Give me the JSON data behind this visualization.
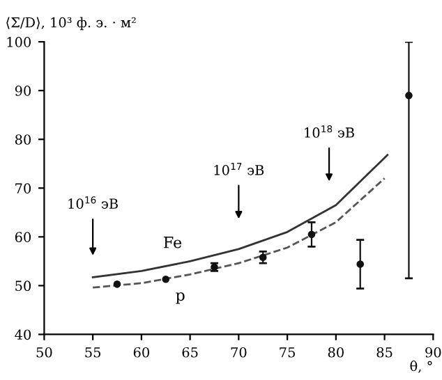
{
  "chart_data": {
    "type": "line",
    "ylabel": "⟨Σ/D⟩, 10³ ф. э. · м²",
    "xlabel": "θ, °",
    "xlim": [
      50,
      90
    ],
    "ylim": [
      40,
      100
    ],
    "xticks": [
      50,
      55,
      60,
      65,
      70,
      75,
      80,
      85,
      90
    ],
    "yticks": [
      40,
      50,
      60,
      70,
      80,
      90,
      100
    ],
    "grid": false,
    "legend": false,
    "series": [
      {
        "name": "Fe",
        "color": "#333333",
        "line_style": "solid",
        "x": [
          55,
          60,
          65,
          70,
          75,
          80,
          85.3
        ],
        "values": [
          51.7,
          53,
          55,
          57.5,
          61,
          66.5,
          76.8
        ]
      },
      {
        "name": "p",
        "color": "#555555",
        "line_style": "dashed",
        "x": [
          55,
          60,
          65,
          70,
          75,
          80,
          85
        ],
        "values": [
          49.6,
          50.5,
          52.3,
          54.6,
          57.8,
          63,
          72
        ]
      },
      {
        "type": "scatter",
        "color": "#111111",
        "marker": "circle",
        "x": [
          57.5,
          62.5,
          67.5,
          72.5,
          77.5,
          82.5,
          87.5
        ],
        "values": [
          50.3,
          51.3,
          53.8,
          55.8,
          60.5,
          54.4,
          89
        ],
        "errors": [
          null,
          null,
          0.8,
          1.2,
          2.5,
          5,
          [
            51.5,
            100
          ]
        ]
      }
    ],
    "annotations": [
      "10$^{16}$ эВ",
      "10$^{17}$ эВ",
      "10$^{18}$ эВ"
    ]
  }
}
